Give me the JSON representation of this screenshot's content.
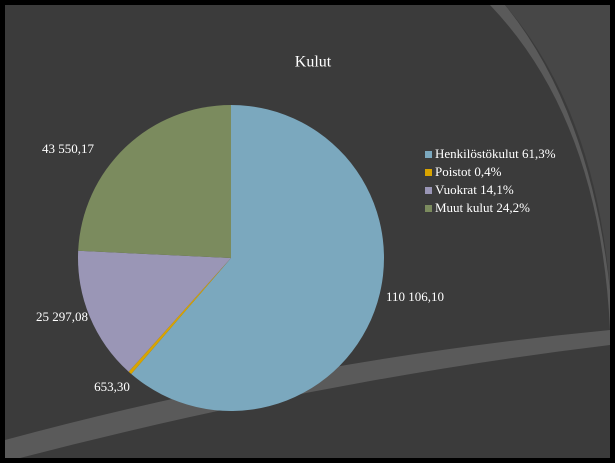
{
  "chart_data": {
    "type": "pie",
    "title": "Kulut",
    "categories": [
      "Henkilöstökulut 61,3%",
      "Poistot 0,4%",
      "Vuokrat 14,1%",
      "Muut kulut 24,2%"
    ],
    "values": [
      110106.1,
      653.3,
      25297.08,
      43550.17
    ],
    "value_labels": [
      "110 106,10",
      "653,30",
      "25 297,08",
      "43 550,17"
    ],
    "colors": [
      "#7ba8be",
      "#d9a400",
      "#9a96b6",
      "#7b8b5e"
    ],
    "legend": "right"
  }
}
